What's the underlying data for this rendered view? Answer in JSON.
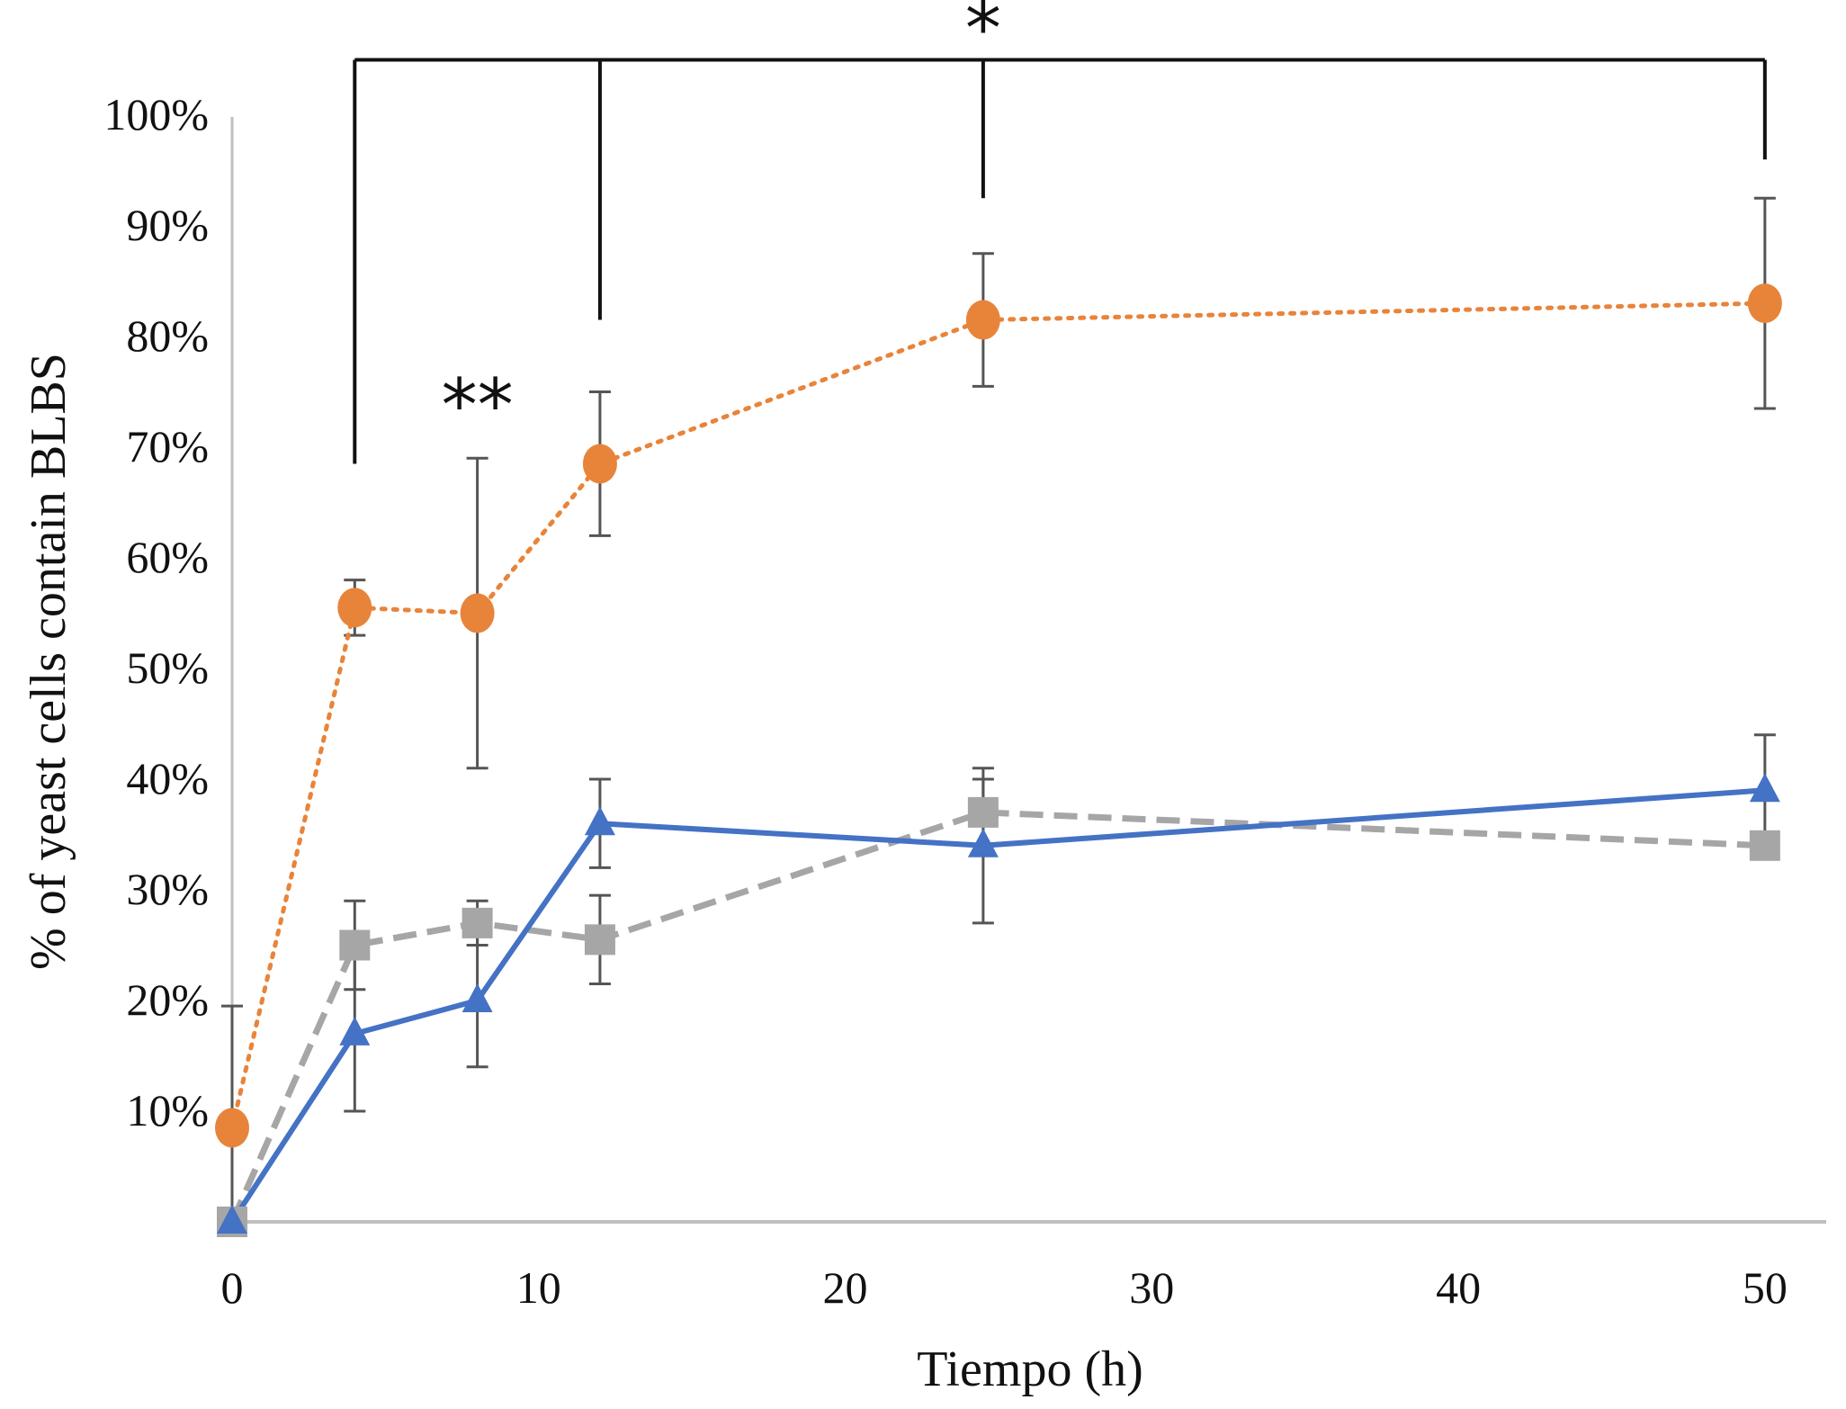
{
  "chart_data": {
    "type": "line",
    "xlabel": "Tiempo (h)",
    "ylabel": "% of yeast cells contain BLBS",
    "xlim": [
      0,
      52
    ],
    "ylim": [
      0,
      100
    ],
    "x_ticks": [
      "0",
      "10",
      "20",
      "30",
      "40",
      "50"
    ],
    "y_ticks": [
      "10%",
      "20%",
      "30%",
      "40%",
      "50%",
      "60%",
      "70%",
      "80%",
      "90%",
      "100%"
    ],
    "grid": false,
    "legend": "none",
    "series": [
      {
        "color": "#e8843a",
        "line_style": "dotted",
        "marker": "circle",
        "x": [
          0,
          4,
          8,
          12,
          24.5,
          50
        ],
        "y": [
          8.5,
          55.5,
          55,
          68.5,
          81.5,
          83
        ],
        "error": [
          11,
          2.5,
          14,
          6.5,
          6,
          9.5
        ]
      },
      {
        "color": "#4472c4",
        "line_style": "solid",
        "marker": "triangle",
        "x": [
          0,
          4,
          8,
          12,
          24.5,
          50
        ],
        "y": [
          0,
          17,
          20,
          36,
          34,
          39
        ],
        "error": [
          0,
          7,
          6,
          4,
          7,
          5
        ]
      },
      {
        "color": "#a6a6a6",
        "line_style": "dashed",
        "marker": "square",
        "x": [
          0,
          4,
          8,
          12,
          24.5,
          50
        ],
        "y": [
          0,
          25,
          27,
          25.5,
          37,
          34
        ],
        "error": [
          0,
          4,
          2,
          4,
          3,
          0
        ]
      }
    ],
    "annotations": [
      {
        "text": "**",
        "x": 8,
        "y": 74
      },
      {
        "text": "*",
        "x": 24.5,
        "y": 108
      }
    ],
    "significance_bracket": {
      "x": [
        4,
        12,
        24.5,
        50
      ],
      "top_y": 105
    }
  }
}
